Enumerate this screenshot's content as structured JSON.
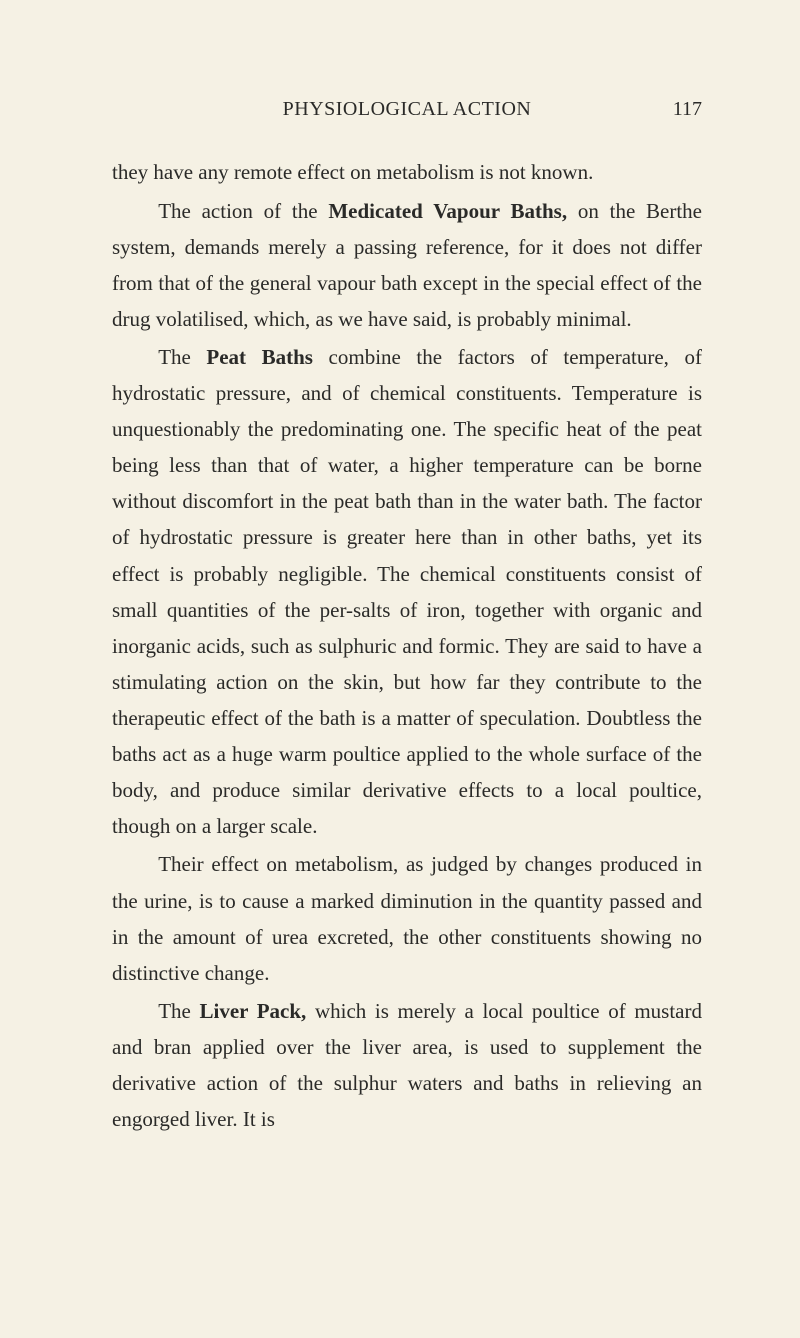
{
  "header": {
    "title": "PHYSIOLOGICAL ACTION",
    "page_number": "117"
  },
  "paragraphs": {
    "p1_a": "they have any remote effect on metabolism is not known.",
    "p2_a": "The action of the ",
    "p2_b": "Medicated Vapour Baths,",
    "p2_c": " on the Berthe system, demands merely a passing reference, for it does not differ from that of the general vapour bath except in the special effect of the drug volatilised, which, as we have said, is probably minimal.",
    "p3_a": "The ",
    "p3_b": "Peat Baths",
    "p3_c": " combine the factors of temperature, of hydrostatic pressure, and of chemical constituents. Temperature is unquestionably the predominating one. The specific heat of the peat being less than that of water, a higher temperature can be borne without dis­comfort in the peat bath than in the water bath. The factor of hydrostatic pressure is greater here than in other baths, yet its effect is probably negligible. The chemical constituents consist of small quantities of the per-salts of iron, together with organic and inorganic acids, such as sulphuric and formic. They are said to have a stimulating action on the skin, but how far they contribute to the therapeutic effect of the bath is a matter of speculation. Doubtless the baths act as a huge warm poultice applied to the whole surface of the body, and produce similar derivative effects to a local poultice, though on a larger scale.",
    "p4_a": "Their effect on metabolism, as judged by changes produced in the urine, is to cause a marked diminution in the quantity passed and in the amount of urea excreted, the other constituents showing no distinctive change.",
    "p5_a": "The ",
    "p5_b": "Liver Pack,",
    "p5_c": " which is merely a local poultice of mustard and bran applied over the liver area, is used to supplement the derivative action of the sulphur waters and baths in relieving an engorged liver. It is"
  }
}
